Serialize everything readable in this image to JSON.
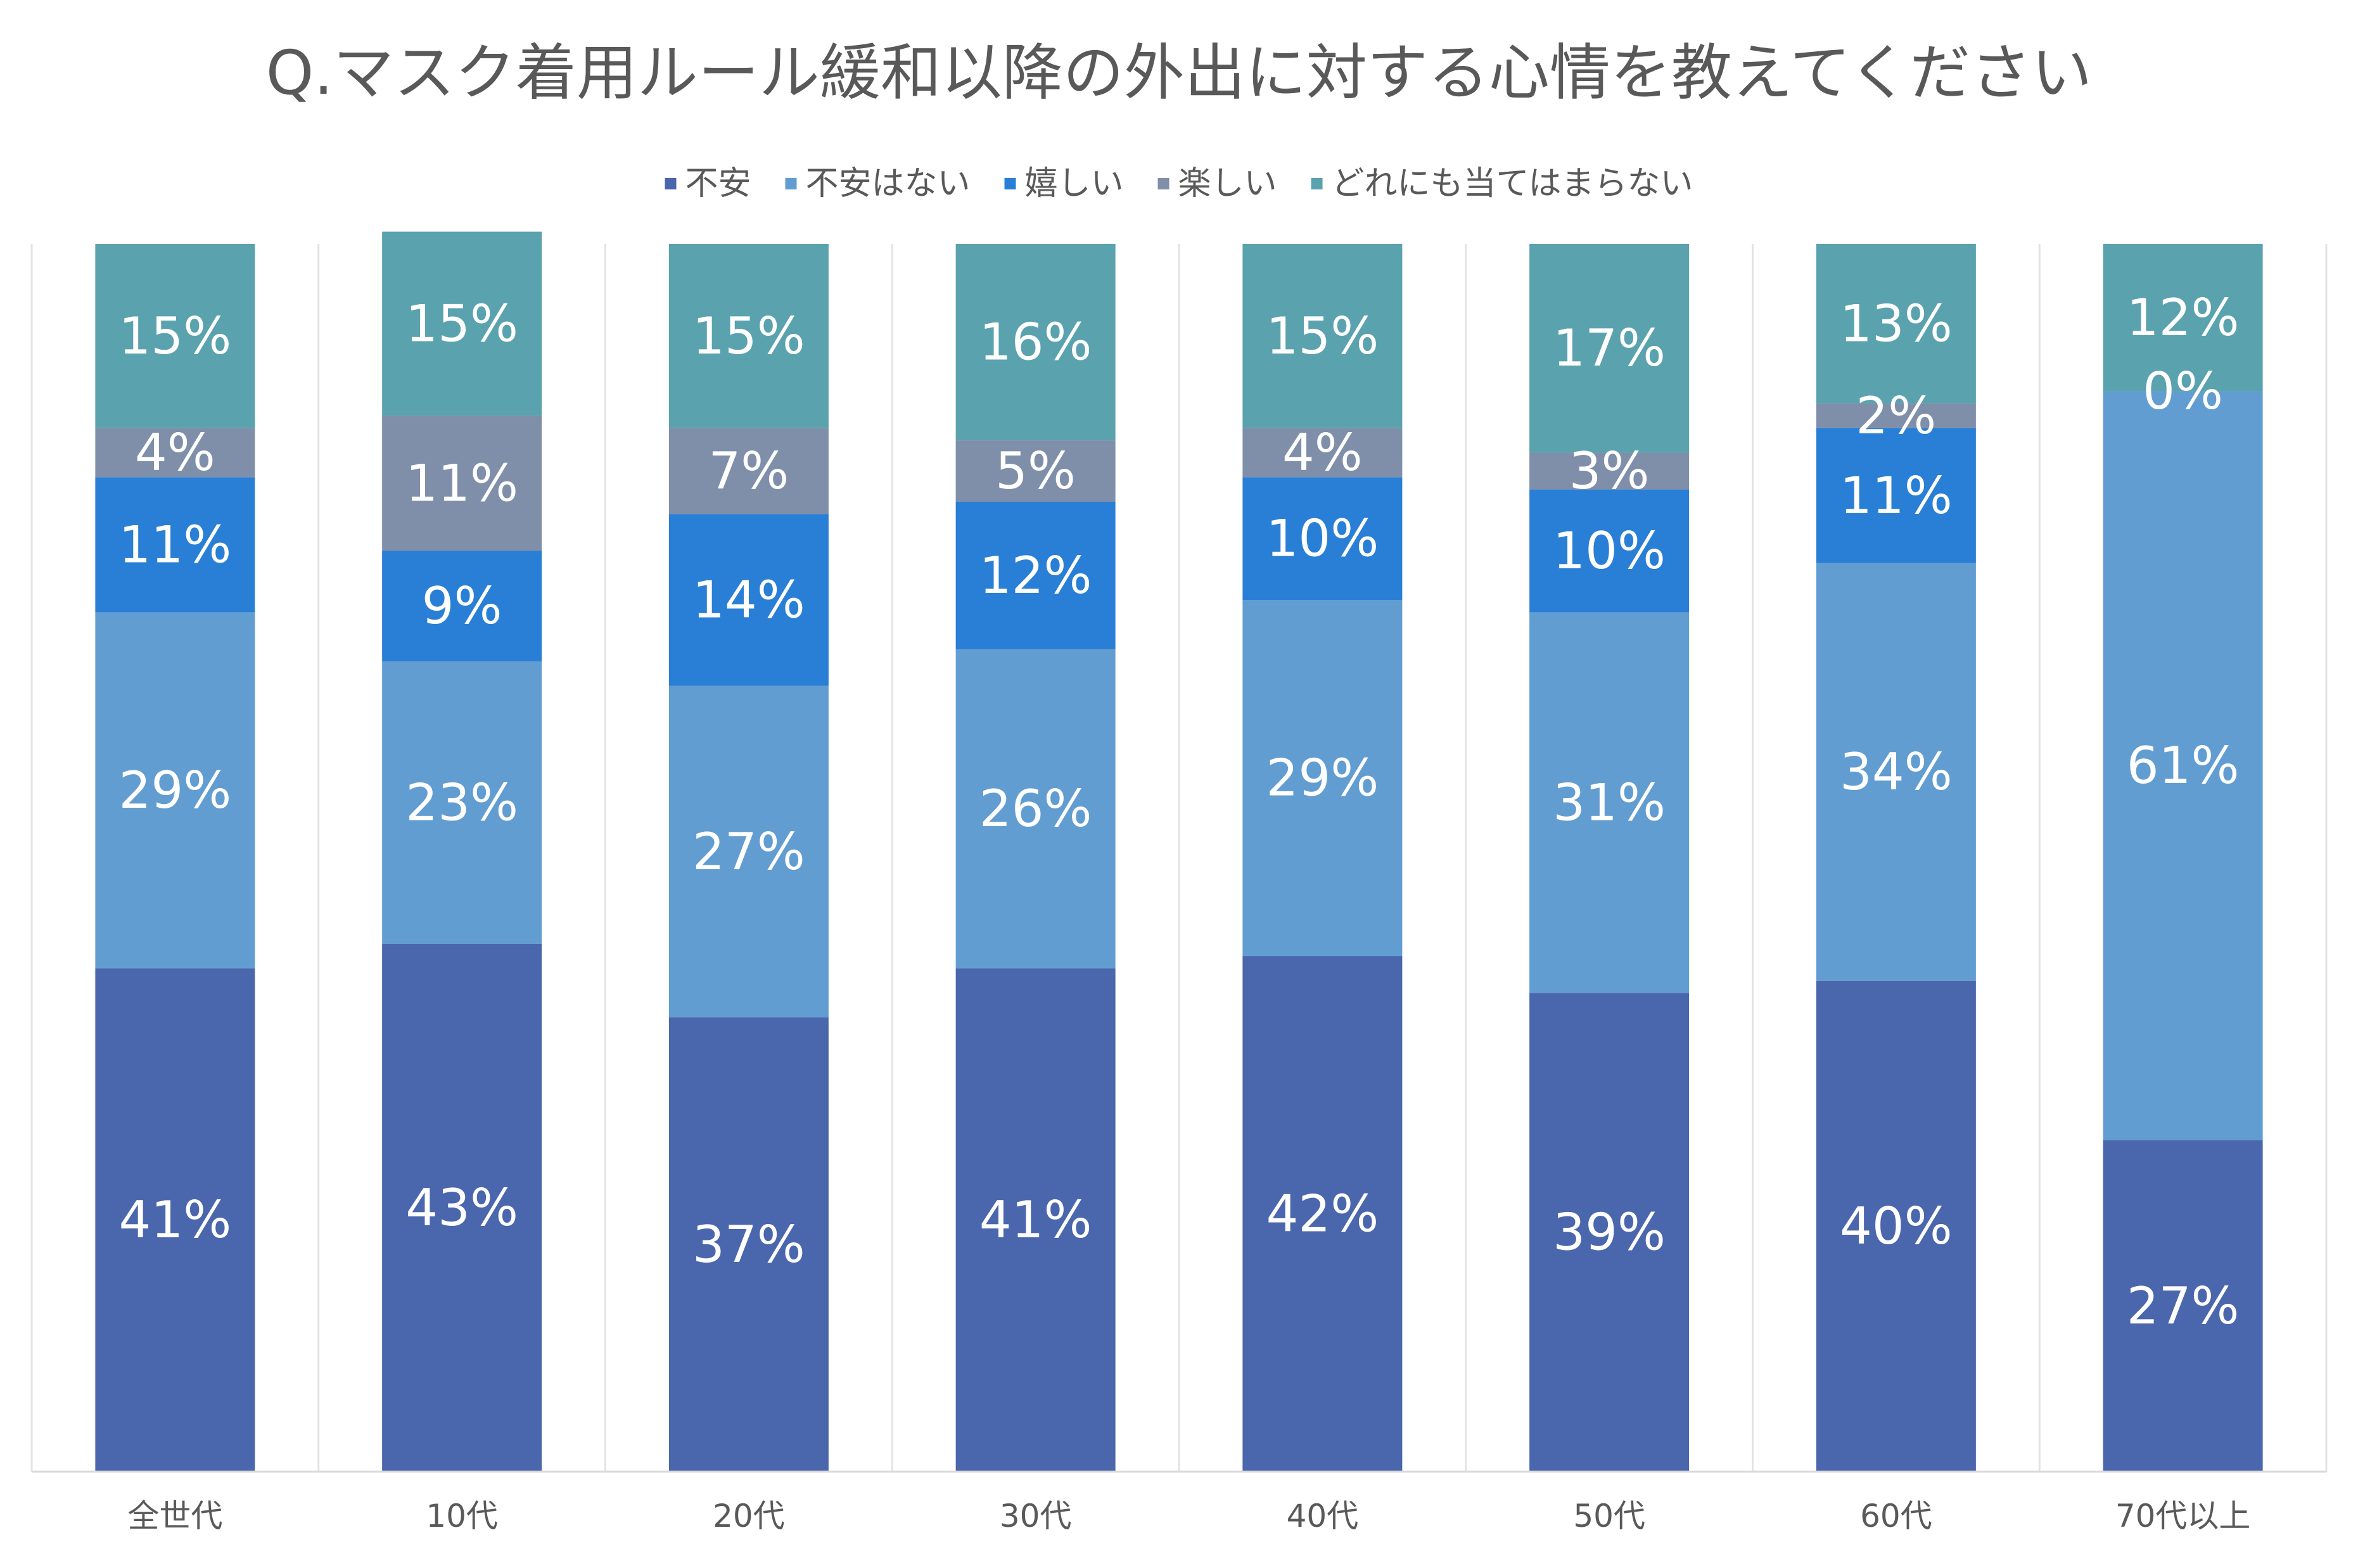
{
  "chart_data": {
    "type": "bar",
    "stacked": true,
    "stack_mode": "percent",
    "title": "Q.マスク着用ルール緩和以降の外出に対する心情を教えてください",
    "xlabel": "",
    "ylabel": "",
    "ylim": [
      0,
      100
    ],
    "grid": false,
    "legend_position": "top",
    "categories": [
      "全世代",
      "10代",
      "20代",
      "30代",
      "40代",
      "50代",
      "60代",
      "70代以上"
    ],
    "series": [
      {
        "name": "不安",
        "color": "#4A66AC",
        "values": [
          41,
          43,
          37,
          41,
          42,
          39,
          40,
          27
        ],
        "labels": [
          "41%",
          "43%",
          "37%",
          "41%",
          "42%",
          "39%",
          "40%",
          "27%"
        ]
      },
      {
        "name": "不安はない",
        "color": "#629DD1",
        "values": [
          29,
          23,
          27,
          26,
          29,
          31,
          34,
          61
        ],
        "labels": [
          "29%",
          "23%",
          "27%",
          "26%",
          "29%",
          "31%",
          "34%",
          "61%"
        ]
      },
      {
        "name": "嬉しい",
        "color": "#297FD5",
        "values": [
          11,
          9,
          14,
          12,
          10,
          10,
          11,
          0
        ],
        "labels": [
          "11%",
          "9%",
          "14%",
          "12%",
          "10%",
          "10%",
          "11%",
          ""
        ]
      },
      {
        "name": "楽しい",
        "color": "#7F8FA9",
        "values": [
          4,
          11,
          7,
          5,
          4,
          3,
          2,
          0
        ],
        "labels": [
          "4%",
          "11%",
          "7%",
          "5%",
          "4%",
          "3%",
          "2%",
          "0%"
        ]
      },
      {
        "name": "どれにも当てはまらない",
        "color": "#5AA2AE",
        "values": [
          15,
          15,
          15,
          16,
          15,
          17,
          13,
          12
        ],
        "labels": [
          "15%",
          "15%",
          "15%",
          "16%",
          "15%",
          "17%",
          "13%",
          "12%"
        ]
      }
    ]
  }
}
